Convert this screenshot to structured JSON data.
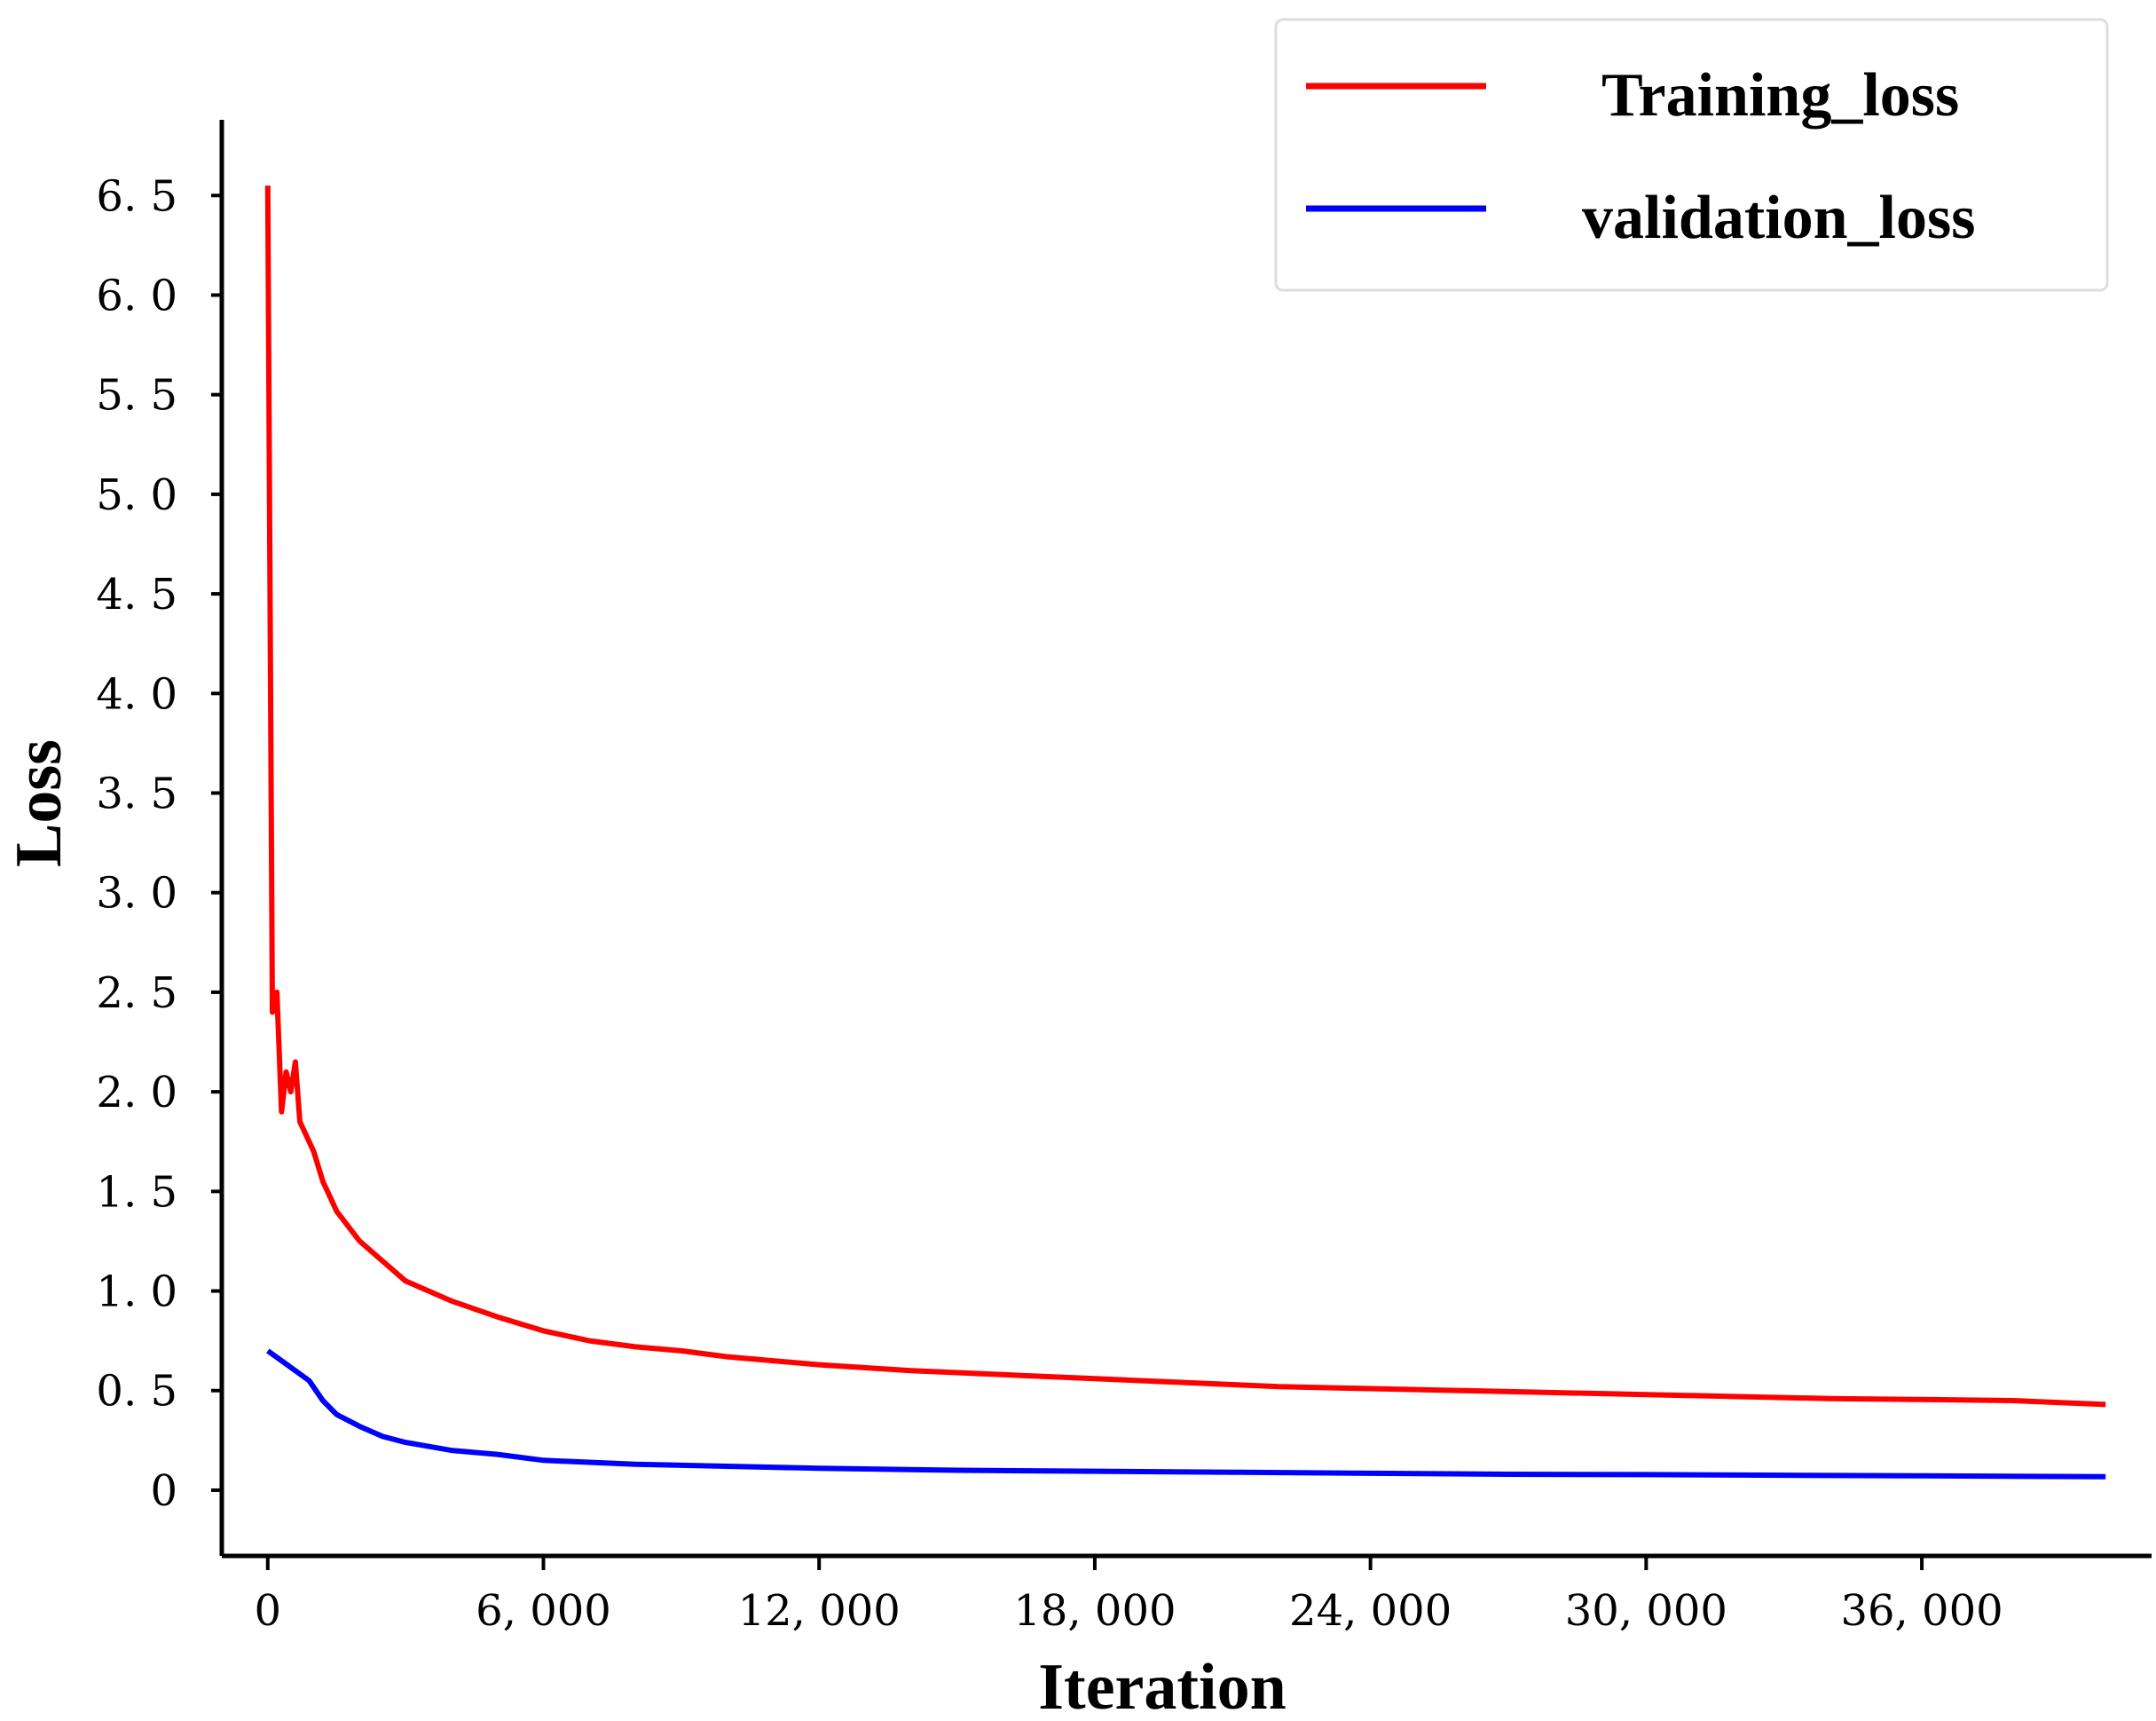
{
  "chart_data": {
    "type": "line",
    "title": "",
    "xlabel": "Iteration",
    "ylabel": "Loss",
    "xlim": [
      -1000,
      41000
    ],
    "ylim": [
      -0.33,
      6.88
    ],
    "x_ticks": [
      0,
      6000,
      12000,
      18000,
      24000,
      30000,
      36000
    ],
    "x_tick_labels": [
      "0",
      "6, 000",
      "12, 000",
      "18, 000",
      "24, 000",
      "30, 000",
      "36, 000"
    ],
    "y_ticks": [
      0,
      0.5,
      1.0,
      1.5,
      2.0,
      2.5,
      3.0,
      3.5,
      4.0,
      4.5,
      5.0,
      5.5,
      6.0,
      6.5
    ],
    "y_tick_labels": [
      "0",
      "0. 5",
      "1. 0",
      "1. 5",
      "2. 0",
      "2. 5",
      "3. 0",
      "3. 5",
      "4. 0",
      "4. 5",
      "5. 0",
      "5. 5",
      "6. 0",
      "6. 5"
    ],
    "grid": false,
    "legend_position": "top-right",
    "series": [
      {
        "name": "Training_loss",
        "color": "#ff0000",
        "x": [
          0,
          100,
          200,
          300,
          400,
          500,
          600,
          700,
          800,
          1000,
          1200,
          1500,
          2000,
          2500,
          3000,
          3500,
          4000,
          5000,
          6000,
          7000,
          8000,
          9000,
          10000,
          12000,
          14000,
          16000,
          18000,
          20000,
          22000,
          24000,
          26000,
          28000,
          30000,
          32000,
          34000,
          36000,
          38000,
          40000
        ],
        "y": [
          6.55,
          2.4,
          2.5,
          1.9,
          2.1,
          2.0,
          2.15,
          1.85,
          1.8,
          1.7,
          1.55,
          1.4,
          1.25,
          1.15,
          1.05,
          1.0,
          0.95,
          0.87,
          0.8,
          0.75,
          0.72,
          0.7,
          0.67,
          0.63,
          0.6,
          0.58,
          0.56,
          0.54,
          0.52,
          0.51,
          0.5,
          0.49,
          0.48,
          0.47,
          0.46,
          0.455,
          0.45,
          0.43
        ]
      },
      {
        "name": "validation_loss",
        "color": "#0000ff",
        "x": [
          0,
          300,
          600,
          900,
          1200,
          1500,
          2000,
          2500,
          3000,
          4000,
          5000,
          6000,
          8000,
          10000,
          12000,
          15000,
          18000,
          21000,
          24000,
          27000,
          30000,
          33000,
          36000,
          40000
        ],
        "y": [
          0.7,
          0.65,
          0.6,
          0.55,
          0.45,
          0.38,
          0.32,
          0.27,
          0.24,
          0.2,
          0.18,
          0.15,
          0.13,
          0.12,
          0.11,
          0.1,
          0.095,
          0.09,
          0.085,
          0.08,
          0.078,
          0.075,
          0.072,
          0.068
        ]
      }
    ]
  }
}
